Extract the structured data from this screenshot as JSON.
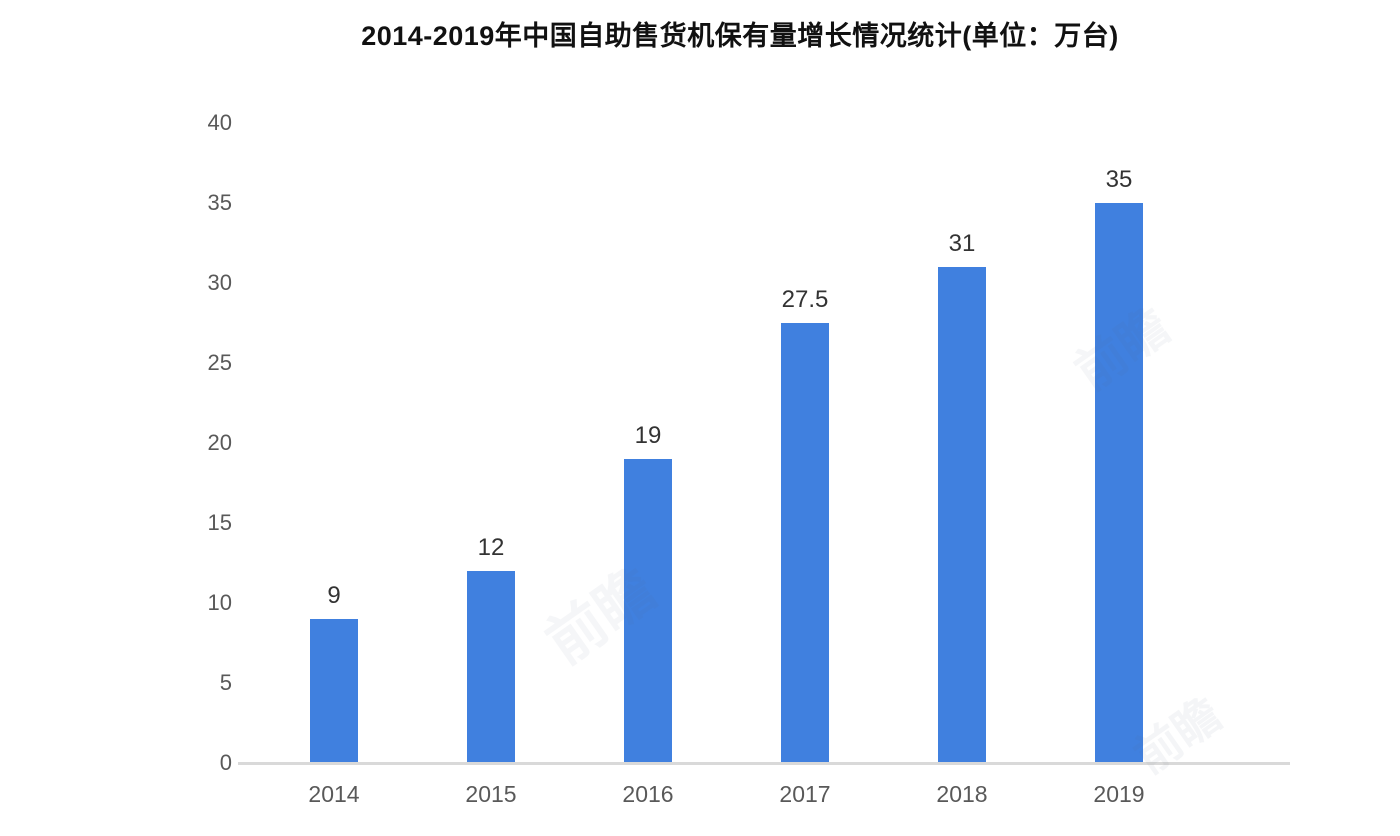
{
  "title": "2014-2019年中国自助售货机保有量增长情况统计(单位：万台)",
  "watermark": {
    "text": "前瞻"
  },
  "chart_data": {
    "type": "bar",
    "title": "2014-2019年中国自助售货机保有量增长情况统计(单位：万台)",
    "unit": "万台",
    "categories": [
      "2014",
      "2015",
      "2016",
      "2017",
      "2018",
      "2019"
    ],
    "values": [
      9,
      12,
      19,
      27.5,
      31,
      35
    ],
    "value_labels": [
      "9",
      "12",
      "19",
      "27.5",
      "31",
      "35"
    ],
    "xlabel": "",
    "ylabel": "",
    "ylim": [
      0,
      40
    ],
    "yticks": [
      0,
      5,
      10,
      15,
      20,
      25,
      30,
      35,
      40
    ],
    "grid": false,
    "legend_position": "none",
    "bar_color": "#4080DF",
    "axis_line_color": "#D9D9D9",
    "tick_label_color": "#595959",
    "value_label_color": "#333333",
    "title_color": "#111111"
  }
}
